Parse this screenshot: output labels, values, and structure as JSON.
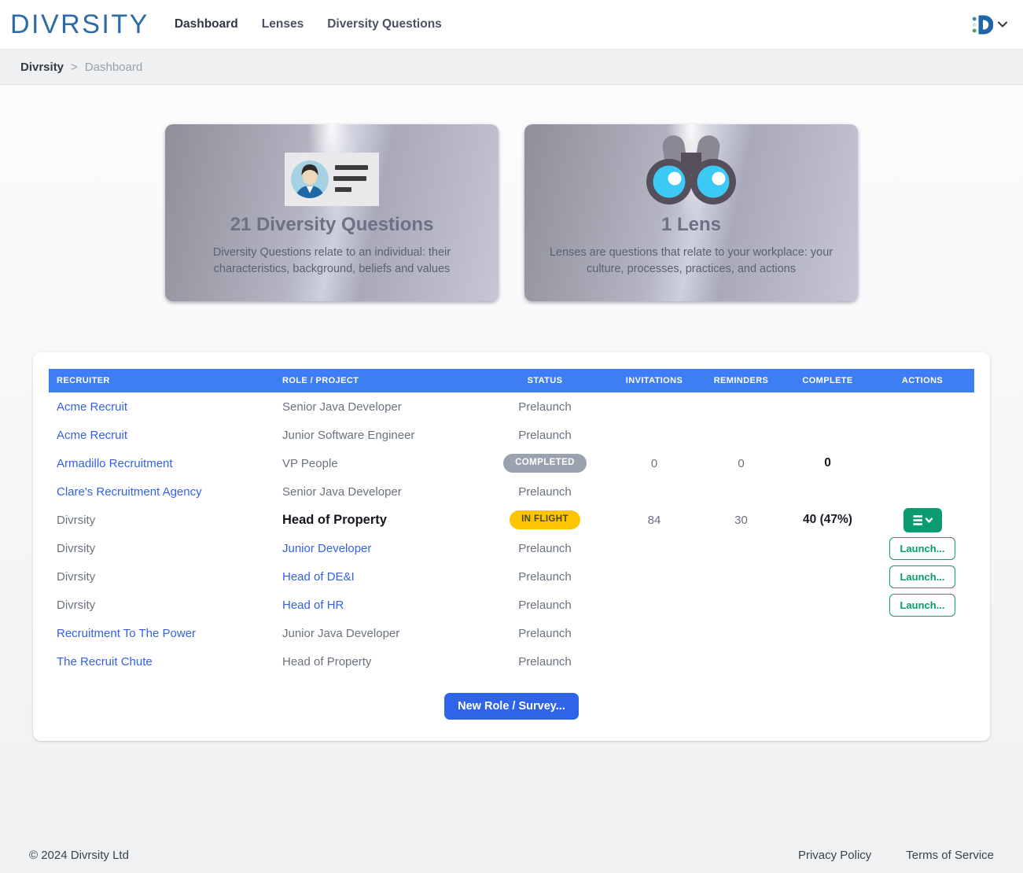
{
  "brand": {
    "logo_text": "DIVRSITY"
  },
  "nav": {
    "items": [
      {
        "label": "Dashboard",
        "active": true
      },
      {
        "label": "Lenses",
        "active": false
      },
      {
        "label": "Diversity Questions",
        "active": false
      }
    ]
  },
  "breadcrumb": {
    "root": "Divrsity",
    "separator": ">",
    "current": "Dashboard"
  },
  "cards": [
    {
      "icon": "id-card-icon",
      "title": "21 Diversity Questions",
      "description": "Diversity Questions relate to an individual: their characteristics, background, beliefs and values"
    },
    {
      "icon": "binoculars-icon",
      "title": "1 Lens",
      "description": "Lenses are questions that relate to your workplace: your culture, processes, practices, and actions"
    }
  ],
  "table": {
    "columns": [
      "RECRUITER",
      "ROLE / PROJECT",
      "STATUS",
      "INVITATIONS",
      "REMINDERS",
      "COMPLETE",
      "ACTIONS"
    ],
    "launch_label": "Launch...",
    "new_button_label": "New Role / Survey...",
    "rows": [
      {
        "recruiter": "Acme Recruit",
        "recruiter_is_link": true,
        "role": "Senior Java Developer",
        "role_is_link": false,
        "role_bold": false,
        "status": "Prelaunch",
        "status_style": "text",
        "invitations": "",
        "reminders": "",
        "complete": "",
        "action": "none"
      },
      {
        "recruiter": "Acme Recruit",
        "recruiter_is_link": true,
        "role": "Junior Software Engineer",
        "role_is_link": false,
        "role_bold": false,
        "status": "Prelaunch",
        "status_style": "text",
        "invitations": "",
        "reminders": "",
        "complete": "",
        "action": "none"
      },
      {
        "recruiter": "Armadillo Recruitment",
        "recruiter_is_link": true,
        "role": "VP People",
        "role_is_link": false,
        "role_bold": false,
        "status": "COMPLETED",
        "status_style": "completed",
        "invitations": "0",
        "reminders": "0",
        "complete": "0",
        "action": "none"
      },
      {
        "recruiter": "Clare's Recruitment Agency",
        "recruiter_is_link": true,
        "role": "Senior Java Developer",
        "role_is_link": false,
        "role_bold": false,
        "status": "Prelaunch",
        "status_style": "text",
        "invitations": "",
        "reminders": "",
        "complete": "",
        "action": "none"
      },
      {
        "recruiter": "Divrsity",
        "recruiter_is_link": false,
        "role": "Head of Property",
        "role_is_link": false,
        "role_bold": true,
        "status": "IN FLIGHT",
        "status_style": "inflight",
        "invitations": "84",
        "reminders": "30",
        "complete": "40 (47%)",
        "action": "menu"
      },
      {
        "recruiter": "Divrsity",
        "recruiter_is_link": false,
        "role": "Junior Developer",
        "role_is_link": true,
        "role_bold": false,
        "status": "Prelaunch",
        "status_style": "text",
        "invitations": "",
        "reminders": "",
        "complete": "",
        "action": "launch"
      },
      {
        "recruiter": "Divrsity",
        "recruiter_is_link": false,
        "role": "Head of DE&I",
        "role_is_link": true,
        "role_bold": false,
        "status": "Prelaunch",
        "status_style": "text",
        "invitations": "",
        "reminders": "",
        "complete": "",
        "action": "launch"
      },
      {
        "recruiter": "Divrsity",
        "recruiter_is_link": false,
        "role": "Head of HR",
        "role_is_link": true,
        "role_bold": false,
        "status": "Prelaunch",
        "status_style": "text",
        "invitations": "",
        "reminders": "",
        "complete": "",
        "action": "launch"
      },
      {
        "recruiter": "Recruitment To The Power",
        "recruiter_is_link": true,
        "role": "Junior Java Developer",
        "role_is_link": false,
        "role_bold": false,
        "status": "Prelaunch",
        "status_style": "text",
        "invitations": "",
        "reminders": "",
        "complete": "",
        "action": "none"
      },
      {
        "recruiter": "The Recruit Chute",
        "recruiter_is_link": true,
        "role": "Head of Property",
        "role_is_link": false,
        "role_bold": false,
        "status": "Prelaunch",
        "status_style": "text",
        "invitations": "",
        "reminders": "",
        "complete": "",
        "action": "none"
      }
    ]
  },
  "footer": {
    "copyright": "© 2024 Divrsity Ltd",
    "links": [
      "Privacy Policy",
      "Terms of Service"
    ]
  },
  "colors": {
    "brand_blue": "#2e6ba6",
    "table_header_blue": "#3d7ef2",
    "link_blue": "#3461e4",
    "primary_button_blue": "#2f63e8",
    "accent_green": "#0a9c70",
    "inflight_yellow": "#fdc500",
    "completed_gray": "#9aa2af"
  }
}
